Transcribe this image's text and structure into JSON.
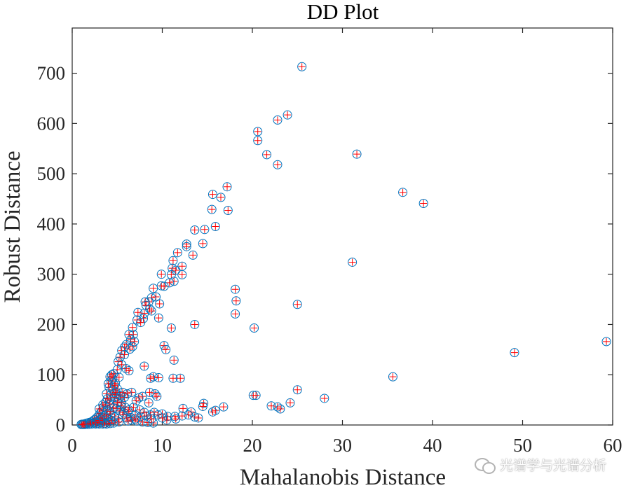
{
  "chart_data": {
    "type": "scatter",
    "title": "DD Plot",
    "xlabel": "Mahalanobis Distance",
    "ylabel": "Robust Distance",
    "xlim": [
      0,
      60
    ],
    "ylim": [
      0,
      790
    ],
    "xticks": [
      0,
      10,
      20,
      30,
      40,
      50,
      60
    ],
    "yticks": [
      0,
      100,
      200,
      300,
      400,
      500,
      600,
      700
    ],
    "grid": false,
    "colors": {
      "circle": "#0072bd",
      "plus": "#ff0000"
    },
    "series": [
      {
        "marker": "circle-plus",
        "points": [
          [
            25.5,
            713
          ],
          [
            23.9,
            617
          ],
          [
            22.8,
            607
          ],
          [
            20.6,
            584
          ],
          [
            20.6,
            566
          ],
          [
            21.6,
            538
          ],
          [
            22.8,
            518
          ],
          [
            31.6,
            539
          ],
          [
            36.7,
            463
          ],
          [
            39.0,
            441
          ],
          [
            31.1,
            324
          ],
          [
            25.0,
            240
          ],
          [
            18.1,
            270
          ],
          [
            18.2,
            247
          ],
          [
            18.1,
            221
          ],
          [
            20.2,
            193
          ],
          [
            17.2,
            474
          ],
          [
            15.6,
            459
          ],
          [
            16.5,
            453
          ],
          [
            15.5,
            429
          ],
          [
            17.3,
            427
          ],
          [
            15.9,
            395
          ],
          [
            14.7,
            389
          ],
          [
            13.6,
            388
          ],
          [
            12.7,
            360
          ],
          [
            12.7,
            355
          ],
          [
            14.5,
            361
          ],
          [
            11.7,
            343
          ],
          [
            13.4,
            338
          ],
          [
            11.2,
            327
          ],
          [
            12.2,
            316
          ],
          [
            11.1,
            312
          ],
          [
            11.5,
            308
          ],
          [
            11.0,
            299
          ],
          [
            9.9,
            300
          ],
          [
            12.2,
            299
          ],
          [
            11.3,
            286
          ],
          [
            10.8,
            283
          ],
          [
            9.9,
            277
          ],
          [
            10.2,
            276
          ],
          [
            9.0,
            272
          ],
          [
            9.3,
            255
          ],
          [
            8.8,
            253
          ],
          [
            8.5,
            245
          ],
          [
            9.7,
            241
          ],
          [
            8.1,
            245
          ],
          [
            8.2,
            238
          ],
          [
            8.6,
            231
          ],
          [
            8.8,
            227
          ],
          [
            8.0,
            222
          ],
          [
            7.3,
            224
          ],
          [
            7.9,
            212
          ],
          [
            7.2,
            209
          ],
          [
            7.6,
            204
          ],
          [
            9.6,
            213
          ],
          [
            11.0,
            193
          ],
          [
            13.6,
            200
          ],
          [
            6.7,
            194
          ],
          [
            6.8,
            180
          ],
          [
            6.3,
            180
          ],
          [
            6.5,
            170
          ],
          [
            6.9,
            166
          ],
          [
            6.0,
            160
          ],
          [
            6.7,
            156
          ],
          [
            5.8,
            155
          ],
          [
            6.4,
            151
          ],
          [
            5.5,
            148
          ],
          [
            5.8,
            140
          ],
          [
            10.2,
            158
          ],
          [
            10.4,
            150
          ],
          [
            11.3,
            129
          ],
          [
            5.3,
            135
          ],
          [
            5.1,
            126
          ],
          [
            5.5,
            120
          ],
          [
            5.0,
            110
          ],
          [
            6.0,
            112
          ],
          [
            8.0,
            117
          ],
          [
            6.3,
            108
          ],
          [
            4.6,
            102
          ],
          [
            9.0,
            96
          ],
          [
            9.6,
            94
          ],
          [
            11.2,
            93
          ],
          [
            12.0,
            93
          ],
          [
            8.7,
            93
          ],
          [
            35.6,
            96
          ],
          [
            49.1,
            144
          ],
          [
            59.3,
            166
          ],
          [
            25.0,
            70
          ],
          [
            20.1,
            59
          ],
          [
            20.4,
            59
          ],
          [
            28.0,
            53
          ],
          [
            24.2,
            44
          ],
          [
            22.1,
            38
          ],
          [
            22.8,
            36
          ],
          [
            23.1,
            32
          ],
          [
            16.8,
            36
          ],
          [
            15.9,
            29
          ],
          [
            14.6,
            43
          ],
          [
            14.5,
            37
          ],
          [
            15.6,
            26
          ],
          [
            9.2,
            62
          ],
          [
            9.4,
            57
          ],
          [
            8.6,
            65
          ],
          [
            7.8,
            57
          ],
          [
            7.4,
            54
          ],
          [
            6.6,
            65
          ],
          [
            7.1,
            48
          ],
          [
            8.5,
            44
          ],
          [
            12.3,
            33
          ],
          [
            13.2,
            26
          ],
          [
            12.9,
            20
          ],
          [
            12.2,
            18
          ],
          [
            11.4,
            17
          ],
          [
            10.6,
            17
          ],
          [
            13.6,
            16
          ],
          [
            10.0,
            22
          ],
          [
            9.5,
            20
          ],
          [
            9.1,
            25
          ],
          [
            8.7,
            20
          ],
          [
            8.2,
            18
          ],
          [
            7.6,
            17
          ],
          [
            7.0,
            20
          ],
          [
            6.5,
            15
          ],
          [
            6.2,
            27
          ],
          [
            5.7,
            25
          ],
          [
            5.4,
            38
          ],
          [
            5.2,
            52
          ],
          [
            4.9,
            61
          ],
          [
            4.5,
            70
          ],
          [
            4.1,
            75
          ],
          [
            4.8,
            83
          ],
          [
            4.5,
            92
          ],
          [
            4.3,
            88
          ],
          [
            4.0,
            82
          ],
          [
            3.8,
            62
          ],
          [
            3.7,
            45
          ],
          [
            3.5,
            36
          ],
          [
            3.3,
            28
          ],
          [
            3.1,
            23
          ],
          [
            2.9,
            18
          ],
          [
            2.7,
            14
          ],
          [
            2.5,
            11
          ],
          [
            2.3,
            8
          ],
          [
            2.1,
            6
          ],
          [
            1.9,
            5
          ],
          [
            1.7,
            4
          ],
          [
            1.5,
            3
          ],
          [
            1.3,
            2
          ],
          [
            1.1,
            1.5
          ],
          [
            1.0,
            1
          ],
          [
            4.2,
            50
          ],
          [
            4.6,
            42
          ],
          [
            4.9,
            33
          ],
          [
            5.3,
            28
          ],
          [
            5.6,
            20
          ],
          [
            6.0,
            14
          ],
          [
            6.6,
            10
          ],
          [
            7.2,
            8
          ],
          [
            7.8,
            6
          ],
          [
            8.4,
            5
          ],
          [
            9.0,
            4
          ],
          [
            3.9,
            30
          ],
          [
            4.3,
            22
          ],
          [
            4.7,
            16
          ],
          [
            5.1,
            12
          ],
          [
            3.6,
            18
          ],
          [
            4.0,
            12
          ],
          [
            4.4,
            9
          ],
          [
            3.2,
            12
          ],
          [
            3.6,
            8
          ],
          [
            4.0,
            6
          ],
          [
            2.8,
            7
          ],
          [
            3.2,
            5
          ],
          [
            3.6,
            3
          ],
          [
            2.4,
            4
          ],
          [
            2.8,
            3
          ],
          [
            5.9,
            35
          ],
          [
            6.3,
            30
          ],
          [
            5.5,
            44
          ],
          [
            4.7,
            55
          ],
          [
            4.3,
            60
          ],
          [
            3.9,
            52
          ],
          [
            4.1,
            40
          ],
          [
            3.4,
            40
          ],
          [
            3.0,
            32
          ],
          [
            5.0,
            72
          ],
          [
            4.7,
            79
          ],
          [
            4.2,
            96
          ],
          [
            4.4,
            100
          ],
          [
            5.2,
            95
          ],
          [
            4.8,
            65
          ],
          [
            5.8,
            55
          ],
          [
            6.8,
            35
          ],
          [
            7.5,
            30
          ],
          [
            8.0,
            25
          ],
          [
            8.8,
            12
          ],
          [
            10.5,
            10
          ],
          [
            11.5,
            12
          ],
          [
            14.0,
            14
          ],
          [
            10.0,
            14
          ],
          [
            7.0,
            12
          ],
          [
            6.2,
            8
          ],
          [
            5.2,
            6
          ],
          [
            4.6,
            4
          ],
          [
            4.2,
            3
          ],
          [
            3.8,
            2
          ],
          [
            3.4,
            2
          ],
          [
            3.0,
            2
          ],
          [
            2.6,
            2
          ],
          [
            2.2,
            2
          ],
          [
            1.8,
            1
          ],
          [
            1.4,
            1
          ],
          [
            1.2,
            1
          ],
          [
            2.0,
            3
          ],
          [
            2.6,
            5
          ],
          [
            3.0,
            9
          ],
          [
            3.4,
            14
          ],
          [
            3.8,
            20
          ],
          [
            4.2,
            27
          ],
          [
            4.6,
            34
          ],
          [
            5.0,
            45
          ],
          [
            5.4,
            58
          ],
          [
            5.6,
            65
          ],
          [
            6.1,
            62
          ]
        ]
      }
    ]
  },
  "watermark": "光谱学与光谱分析",
  "icons": {
    "watermark_icon": "wechat-icon"
  }
}
